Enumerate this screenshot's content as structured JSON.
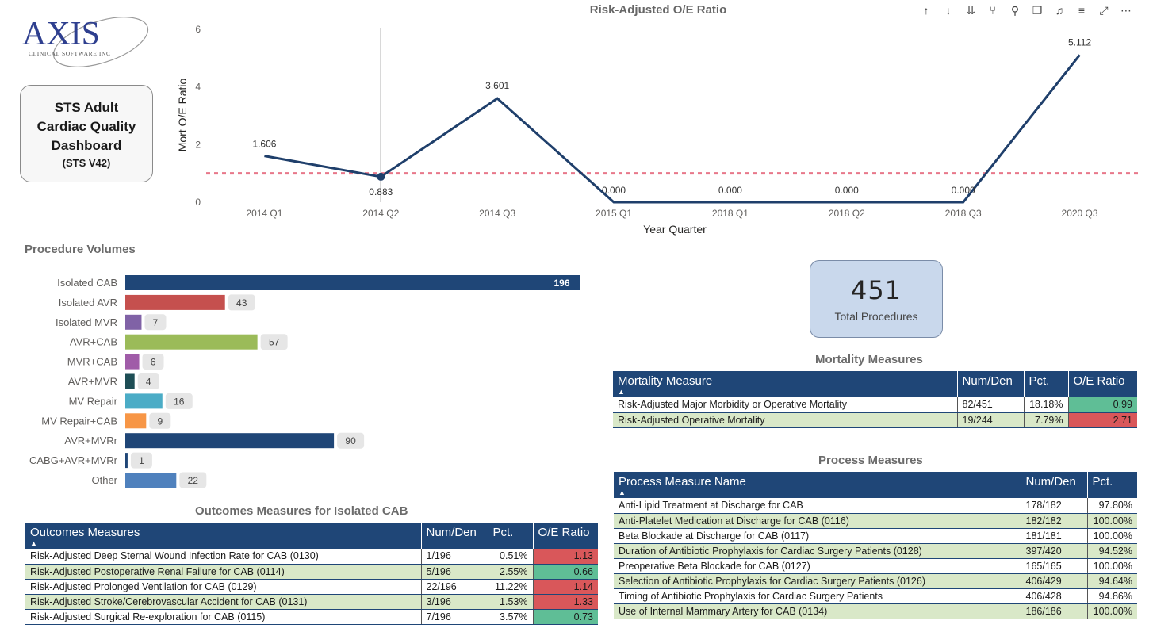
{
  "logo": {
    "main_text": "AXIS",
    "sub_text": "CLINICAL SOFTWARE INC"
  },
  "title_box": {
    "title": "STS Adult Cardiac Quality Dashboard",
    "subtitle": "(STS V42)"
  },
  "toolbar": {
    "icons": [
      "arrow-up-icon",
      "arrow-down-icon",
      "double-arrow-down-icon",
      "expand-hierarchy-icon",
      "pin-icon",
      "copy-icon",
      "bell-icon",
      "filter-icon",
      "focus-mode-icon",
      "more-options-icon"
    ]
  },
  "line_chart": {
    "title": "Risk-Adjusted O/E Ratio",
    "chart_data": {
      "type": "line",
      "title": "Risk-Adjusted O/E Ratio",
      "xlabel": "Year Quarter",
      "ylabel": "Mort O/E Ratio",
      "categories": [
        "2014 Q1",
        "2014 Q2",
        "2014 Q3",
        "2015 Q1",
        "2018 Q1",
        "2018 Q2",
        "2018 Q3",
        "2020 Q3"
      ],
      "series": [
        {
          "values": [
            1.606,
            0.883,
            3.601,
            0.0,
            0.0,
            0.0,
            0.0,
            5.112
          ],
          "labels": [
            "1.606",
            "0.883",
            "3.601",
            "0.000",
            "0.000",
            "0.000",
            "0.000",
            "5.112"
          ]
        }
      ],
      "reference_line": 1.0,
      "yticks": [
        "0",
        "2",
        "4",
        "6"
      ],
      "ylim": [
        0,
        6
      ],
      "line_color": "#1f3f6b",
      "reference_color": "#e8778a",
      "highlight_index": 1
    }
  },
  "procedure_volumes": {
    "title": "Procedure Volumes",
    "chart_data": {
      "type": "bar",
      "orientation": "horizontal",
      "categories": [
        "Isolated CAB",
        "Isolated AVR",
        "Isolated MVR",
        "AVR+CAB",
        "MVR+CAB",
        "AVR+MVR",
        "MV Repair",
        "MV Repair+CAB",
        "AVR+MVRr",
        "CABG+AVR+MVRr",
        "Other"
      ],
      "values": [
        196,
        43,
        7,
        57,
        6,
        4,
        16,
        9,
        90,
        1,
        22
      ],
      "colors": [
        "#1f4677",
        "#c5504e",
        "#8062a6",
        "#9bbb59",
        "#a05ca8",
        "#1e4e55",
        "#4bacc6",
        "#f79646",
        "#1f4677",
        "#1f4677",
        "#4f81bd"
      ],
      "xlim": [
        0,
        196
      ]
    }
  },
  "total_card": {
    "value": "451",
    "label": "Total Procedures"
  },
  "mortality": {
    "title": "Mortality Measures",
    "headers": [
      "Mortality Measure",
      "Num/Den",
      "Pct.",
      "O/E Ratio"
    ],
    "rows": [
      {
        "name": "Risk-Adjusted Major Morbidity or Operative Mortality",
        "numden": "82/451",
        "pct": "18.18%",
        "oe": "0.99",
        "oe_status": "green"
      },
      {
        "name": "Risk-Adjusted Operative Mortality",
        "numden": "19/244",
        "pct": "7.79%",
        "oe": "2.71",
        "oe_status": "red"
      }
    ]
  },
  "process": {
    "title": "Process Measures",
    "headers": [
      "Process Measure Name",
      "Num/Den",
      "Pct."
    ],
    "rows": [
      {
        "name": "Anti-Lipid Treatment at Discharge for CAB",
        "numden": "178/182",
        "pct": "97.80%"
      },
      {
        "name": "Anti-Platelet Medication at Discharge for CAB (0116)",
        "numden": "182/182",
        "pct": "100.00%"
      },
      {
        "name": "Beta Blockade at Discharge for CAB (0117)",
        "numden": "181/181",
        "pct": "100.00%"
      },
      {
        "name": "Duration of Antibiotic Prophylaxis for Cardiac Surgery Patients (0128)",
        "numden": "397/420",
        "pct": "94.52%"
      },
      {
        "name": "Preoperative Beta Blockade for CAB (0127)",
        "numden": "165/165",
        "pct": "100.00%"
      },
      {
        "name": "Selection of Antibiotic Prophylaxis for Cardiac Surgery Patients (0126)",
        "numden": "406/429",
        "pct": "94.64%"
      },
      {
        "name": "Timing of Antibiotic Prophylaxis for Cardiac Surgery Patients",
        "numden": "406/428",
        "pct": "94.86%"
      },
      {
        "name": "Use of Internal Mammary Artery for CAB (0134)",
        "numden": "186/186",
        "pct": "100.00%"
      }
    ]
  },
  "outcomes": {
    "title": "Outcomes Measures for Isolated CAB",
    "headers": [
      "Outcomes Measures",
      "Num/Den",
      "Pct.",
      "O/E Ratio"
    ],
    "rows": [
      {
        "name": "Risk-Adjusted Deep Sternal Wound Infection Rate for CAB (0130)",
        "numden": "1/196",
        "pct": "0.51%",
        "oe": "1.13",
        "oe_status": "red"
      },
      {
        "name": "Risk-Adjusted Postoperative Renal Failure for CAB (0114)",
        "numden": "5/196",
        "pct": "2.55%",
        "oe": "0.66",
        "oe_status": "green"
      },
      {
        "name": "Risk-Adjusted Prolonged Ventilation for CAB (0129)",
        "numden": "22/196",
        "pct": "11.22%",
        "oe": "1.14",
        "oe_status": "red"
      },
      {
        "name": "Risk-Adjusted Stroke/Cerebrovascular Accident for CAB (0131)",
        "numden": "3/196",
        "pct": "1.53%",
        "oe": "1.33",
        "oe_status": "red"
      },
      {
        "name": "Risk-Adjusted Surgical Re-exploration for CAB (0115)",
        "numden": "7/196",
        "pct": "3.57%",
        "oe": "0.73",
        "oe_status": "green"
      }
    ]
  }
}
